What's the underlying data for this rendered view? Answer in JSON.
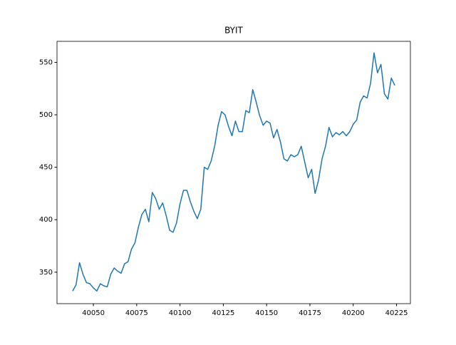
{
  "chart_data": {
    "type": "line",
    "title": "BYIT",
    "x": [
      40038,
      40040,
      40042,
      40044,
      40046,
      40048,
      40050,
      40052,
      40054,
      40056,
      40058,
      40060,
      40062,
      40064,
      40066,
      40068,
      40070,
      40072,
      40074,
      40076,
      40078,
      40080,
      40082,
      40084,
      40086,
      40088,
      40090,
      40092,
      40094,
      40096,
      40098,
      40100,
      40102,
      40104,
      40106,
      40108,
      40110,
      40112,
      40114,
      40116,
      40118,
      40120,
      40122,
      40124,
      40126,
      40128,
      40130,
      40132,
      40134,
      40136,
      40138,
      40140,
      40142,
      40144,
      40146,
      40148,
      40150,
      40152,
      40154,
      40156,
      40158,
      40160,
      40162,
      40164,
      40166,
      40168,
      40170,
      40172,
      40174,
      40176,
      40178,
      40180,
      40182,
      40184,
      40186,
      40188,
      40190,
      40192,
      40194,
      40196,
      40198,
      40200,
      40202,
      40204,
      40206,
      40208,
      40210,
      40212,
      40214,
      40216,
      40218,
      40220,
      40222,
      40224
    ],
    "values": [
      332,
      338,
      359,
      348,
      340,
      339,
      335,
      332,
      339,
      337,
      336,
      348,
      354,
      351,
      349,
      358,
      360,
      372,
      378,
      393,
      405,
      410,
      398,
      426,
      420,
      410,
      416,
      404,
      390,
      388,
      397,
      415,
      428,
      428,
      417,
      408,
      401,
      410,
      450,
      448,
      456,
      470,
      490,
      503,
      500,
      489,
      480,
      494,
      484,
      484,
      504,
      502,
      524,
      512,
      499,
      490,
      494,
      492,
      478,
      486,
      474,
      458,
      456,
      462,
      460,
      462,
      470,
      455,
      440,
      448,
      425,
      438,
      458,
      470,
      488,
      479,
      483,
      481,
      484,
      480,
      484,
      491,
      495,
      512,
      518,
      516,
      530,
      559,
      540,
      548,
      520,
      515,
      535,
      528
    ],
    "color": "#1f77b4",
    "xlim": [
      40029,
      40233
    ],
    "xticks": [
      40050,
      40075,
      40100,
      40125,
      40150,
      40175,
      40200,
      40225
    ],
    "ylim": [
      320,
      570
    ],
    "yticks": [
      350,
      400,
      450,
      500,
      550
    ],
    "grid": false
  }
}
